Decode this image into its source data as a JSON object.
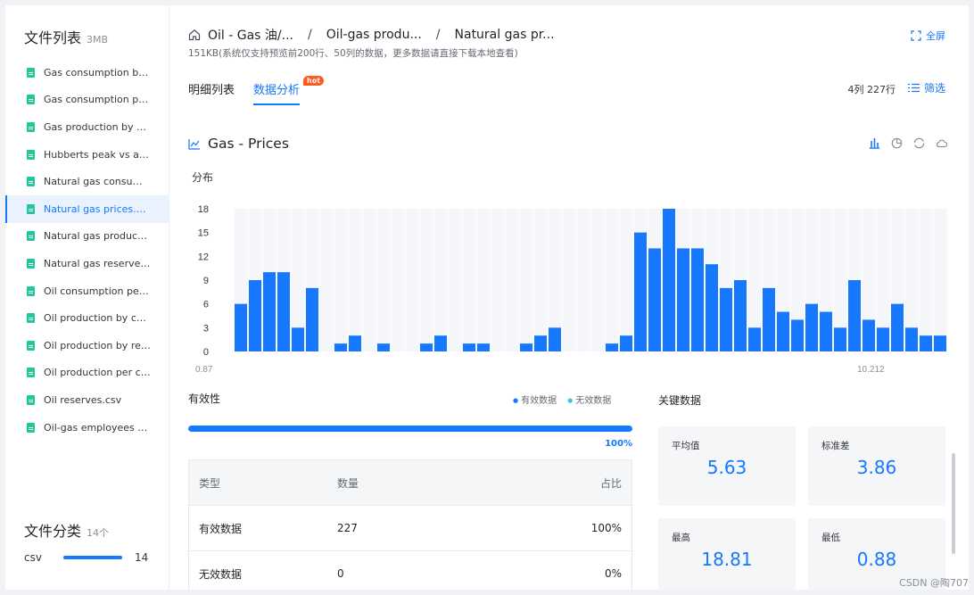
{
  "sidebar": {
    "title": "文件列表",
    "size": "3MB",
    "files": [
      {
        "label": "Gas consumption by ...",
        "active": false
      },
      {
        "label": "Gas consumption per...",
        "active": false
      },
      {
        "label": "Gas production by co...",
        "active": false
      },
      {
        "label": "Hubberts peak vs act...",
        "active": false
      },
      {
        "label": "Natural gas consumpt...",
        "active": false
      },
      {
        "label": "Natural gas prices.csv",
        "active": true
      },
      {
        "label": "Natural gas productio...",
        "active": false
      },
      {
        "label": "Natural gas reserves....",
        "active": false
      },
      {
        "label": "Oil consumption per c...",
        "active": false
      },
      {
        "label": "Oil production by cou...",
        "active": false
      },
      {
        "label": "Oil production by regi...",
        "active": false
      },
      {
        "label": "Oil production per ca...",
        "active": false
      },
      {
        "label": "Oil reserves.csv",
        "active": false
      },
      {
        "label": "Oil-gas employees vs...",
        "active": false
      }
    ],
    "category_title": "文件分类",
    "category_count": "14个",
    "category": {
      "name": "csv",
      "count": "14"
    }
  },
  "header": {
    "breadcrumb": [
      "Oil - Gas 油/...",
      "Oil-gas produ...",
      "Natural gas pr..."
    ],
    "separator": "/",
    "meta": "151KB(系统仅支持预览前200行、50列的数据，更多数据请直接下载本地查看)",
    "fullscreen_label": "全屏"
  },
  "tabs": [
    {
      "label": "明细列表",
      "active": false
    },
    {
      "label": "数据分析",
      "active": true,
      "badge": "hot"
    }
  ],
  "row_count": "4列 227行",
  "filter_label": "筛选",
  "chart_section": {
    "title": "Gas - Prices",
    "tools": [
      "bar-chart-icon",
      "pie-chart-icon",
      "ring-chart-icon",
      "cloud-icon"
    ],
    "distribution_label": "分布"
  },
  "chart_data": {
    "type": "bar",
    "title": "",
    "xlabel": "",
    "ylabel": "",
    "ylim": [
      0,
      18
    ],
    "yticks": [
      "0",
      "3",
      "6",
      "9",
      "12",
      "15",
      "18"
    ],
    "x_start_label": "0.87",
    "x_end_label": "10.212",
    "values": [
      6,
      9,
      10,
      10,
      3,
      8,
      0,
      1,
      2,
      0,
      1,
      0,
      0,
      1,
      2,
      0,
      1,
      1,
      0,
      0,
      1,
      2,
      3,
      0,
      0,
      0,
      1,
      2,
      15,
      13,
      18,
      13,
      13,
      11,
      8,
      9,
      3,
      8,
      5,
      4,
      6,
      5,
      3,
      9,
      4,
      3,
      6,
      3,
      2,
      2
    ],
    "color": "#1677ff",
    "grid": true
  },
  "validity": {
    "title": "有效性",
    "legend_valid": "有效数据",
    "legend_invalid": "无效数据",
    "valid_fraction": 1.0,
    "percent_label": "100%",
    "table": {
      "headers": [
        "类型",
        "数量",
        "占比"
      ],
      "rows": [
        [
          "有效数据",
          "227",
          "100%"
        ],
        [
          "无效数据",
          "0",
          "0%"
        ]
      ]
    }
  },
  "key_data": {
    "title": "关键数据",
    "cards": [
      {
        "label": "平均值",
        "value": "5.63"
      },
      {
        "label": "标准差",
        "value": "3.86"
      },
      {
        "label": "最高",
        "value": "18.81"
      },
      {
        "label": "最低",
        "value": "0.88"
      }
    ]
  },
  "watermark": "CSDN @陶707"
}
